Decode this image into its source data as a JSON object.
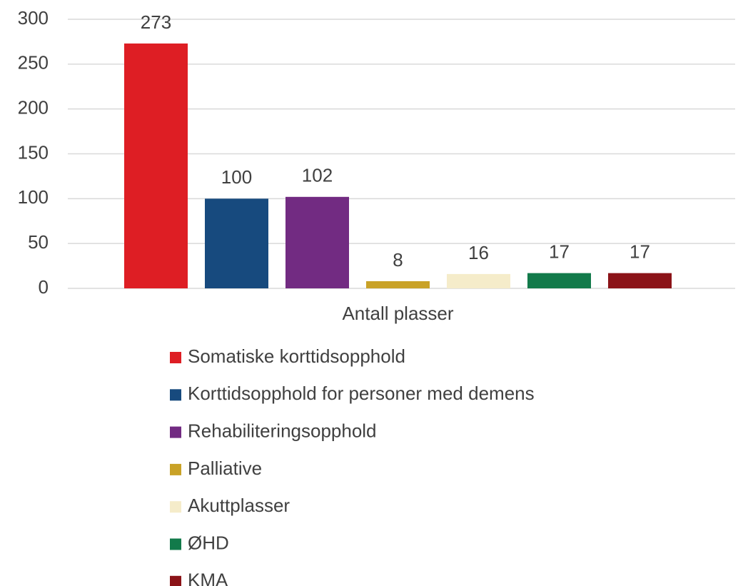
{
  "chart_data": {
    "type": "bar",
    "categories": [
      "Antall plasser"
    ],
    "series": [
      {
        "name": "Somatiske korttidsopphold",
        "color": "#de1e24",
        "values": [
          273
        ]
      },
      {
        "name": "Korttidsopphold for personer med demens",
        "color": "#174a7e",
        "values": [
          100
        ]
      },
      {
        "name": "Rehabiliteringsopphold",
        "color": "#722b82",
        "values": [
          102
        ]
      },
      {
        "name": "Palliative",
        "color": "#c9a227",
        "values": [
          8
        ]
      },
      {
        "name": "Akuttplasser",
        "color": "#f5ecca",
        "values": [
          16
        ]
      },
      {
        "name": "ØHD",
        "color": "#127a4a",
        "values": [
          17
        ]
      },
      {
        "name": "KMA",
        "color": "#8b1318",
        "values": [
          17
        ]
      }
    ],
    "ylim": [
      0,
      300
    ],
    "yticks": [
      0,
      50,
      100,
      150,
      200,
      250,
      300
    ],
    "grid": true,
    "legend": "bottom"
  }
}
